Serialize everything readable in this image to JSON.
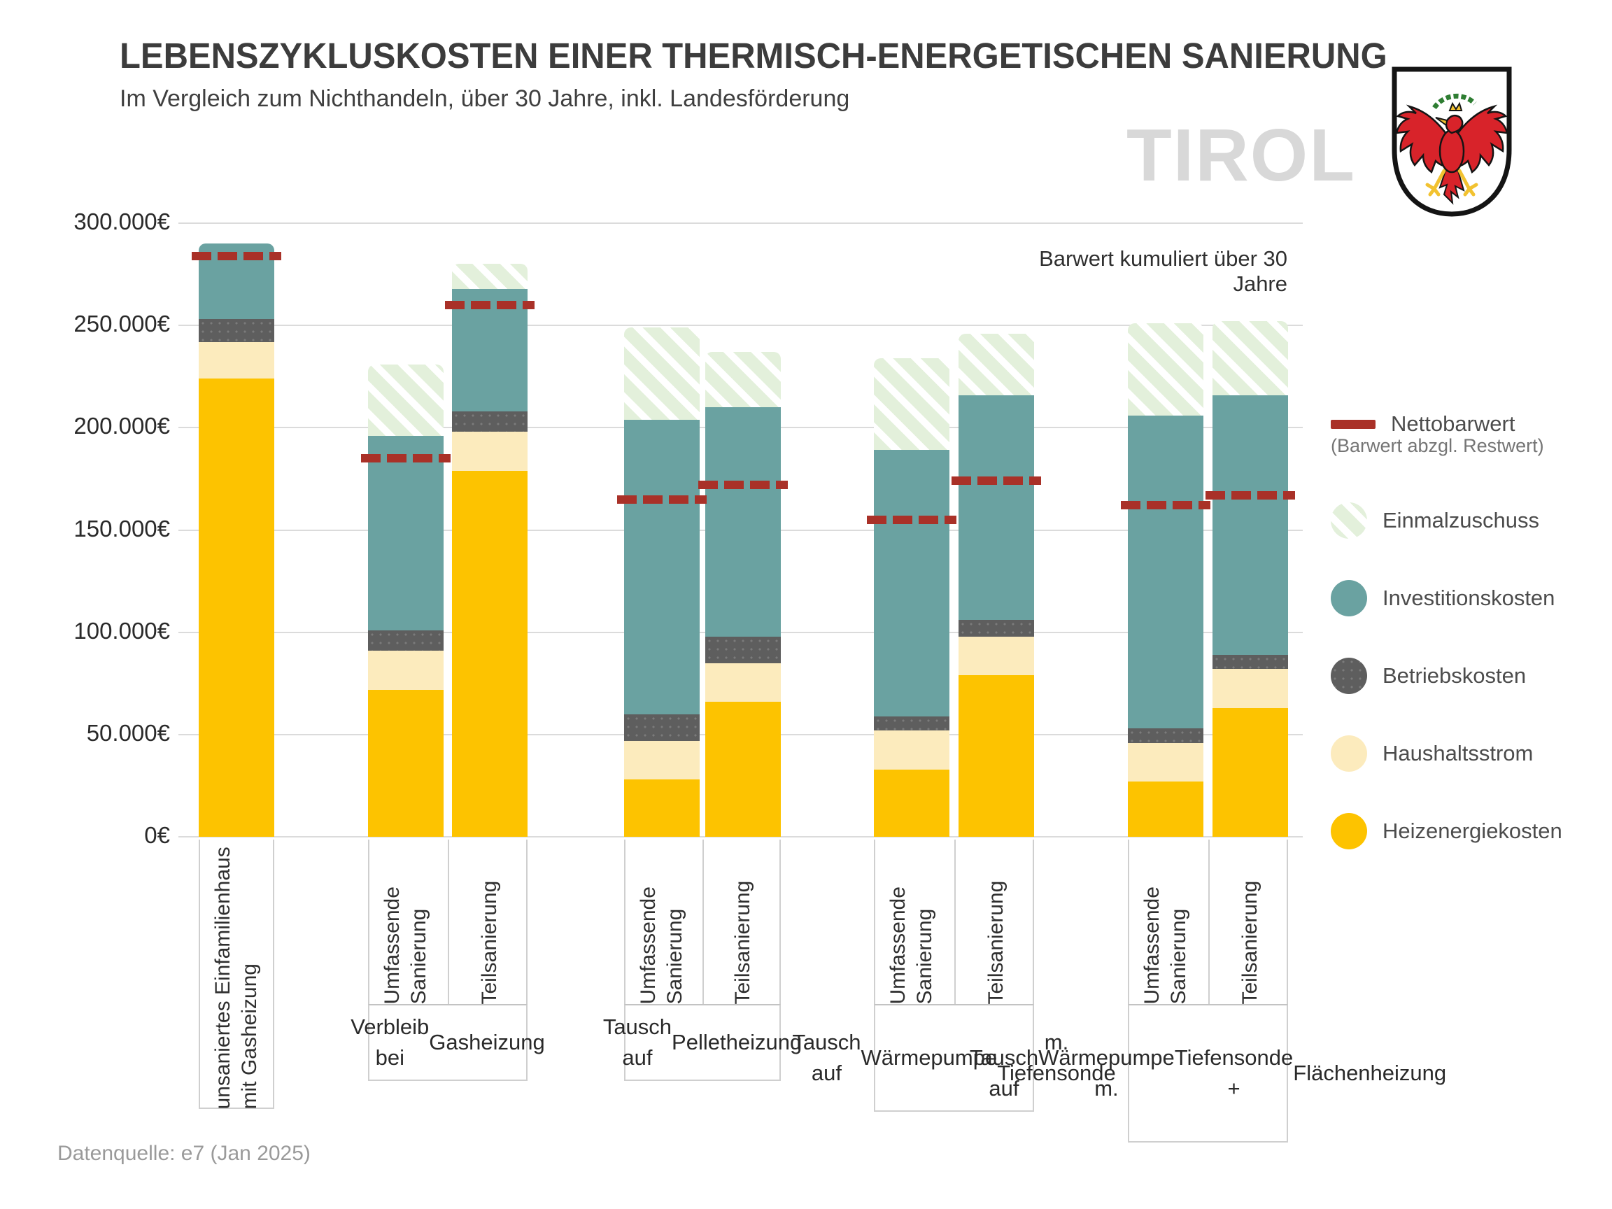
{
  "header": {
    "title": "LEBENSZYKLUSKOSTEN EINER THERMISCH-ENERGETISCHEN SANIERUNG",
    "subtitle": "Im Vergleich zum Nichthandeln, über 30 Jahre, inkl. Landesförderung",
    "watermark": "TIROL",
    "logo": "tirol-coat-of-arms"
  },
  "annotation": "Barwert kumuliert über 30 Jahre",
  "footer": {
    "source": "Datenquelle: e7 (Jan 2025)"
  },
  "colors": {
    "heizenergiekosten": "#FDC300",
    "haushaltsstrom": "#FCEBBD",
    "betriebskosten": "#5E5E5E",
    "investitionskosten": "#6AA2A1",
    "einmalzuschuss_base": "#E3F0DB",
    "einmalzuschuss_stripe": "#FFFFFF",
    "nettobarwert": "#A93128",
    "gridline": "#DBDBDB",
    "title_text": "#3C3C3C",
    "watermark_text": "#D8D8D8"
  },
  "legend": {
    "position": "right",
    "items": [
      {
        "key": "nettobarwert",
        "label": "Nettobarwert",
        "sublabel": "(Barwert abzgl. Restwert)",
        "swatch": "dash"
      },
      {
        "key": "einmalzuschuss",
        "label": "Einmalzuschuss",
        "swatch": "hatched-circle"
      },
      {
        "key": "investitionskosten",
        "label": "Investitionskosten",
        "swatch": "circle"
      },
      {
        "key": "betriebskosten",
        "label": "Betriebskosten",
        "swatch": "circle"
      },
      {
        "key": "haushaltsstrom",
        "label": "Haushaltsstrom",
        "swatch": "circle"
      },
      {
        "key": "heizenergiekosten",
        "label": "Heizenergiekosten",
        "swatch": "circle"
      }
    ]
  },
  "chart_data": {
    "type": "bar",
    "subtype": "stacked",
    "unit": "EUR",
    "title": "Lebenszykluskosten einer thermisch-energetischen Sanierung",
    "ylabel": "Barwert kumuliert über 30 Jahre",
    "ylim": [
      0,
      300000
    ],
    "y_ticks": [
      "0€",
      "50.000€",
      "100.000€",
      "150.000€",
      "200.000€",
      "250.000€",
      "300.000€"
    ],
    "grid": true,
    "stack_order": [
      "heizenergiekosten",
      "haushaltsstrom",
      "betriebskosten",
      "investitionskosten",
      "einmalzuschuss"
    ],
    "series_labels": {
      "heizenergiekosten": "Heizenergiekosten",
      "haushaltsstrom": "Haushaltsstrom",
      "betriebskosten": "Betriebskosten",
      "investitionskosten": "Investitionskosten",
      "einmalzuschuss": "Einmalzuschuss",
      "nettobarwert": "Nettobarwert"
    },
    "bars": [
      {
        "label_lines": [
          "unsaniertes Einfamilienhaus",
          "mit Gasheizung"
        ],
        "values": {
          "heizenergiekosten": 224000,
          "haushaltsstrom": 18000,
          "betriebskosten": 11000,
          "investitionskosten": 37000,
          "einmalzuschuss": 0
        },
        "nettobarwert": 284000
      },
      {
        "label_lines": [
          "Umfassende",
          "Sanierung"
        ],
        "values": {
          "heizenergiekosten": 72000,
          "haushaltsstrom": 19000,
          "betriebskosten": 10000,
          "investitionskosten": 95000,
          "einmalzuschuss": 35000
        },
        "nettobarwert": 185000
      },
      {
        "label_lines": [
          "Teilsanierung"
        ],
        "values": {
          "heizenergiekosten": 179000,
          "haushaltsstrom": 19000,
          "betriebskosten": 10000,
          "investitionskosten": 60000,
          "einmalzuschuss": 12000
        },
        "nettobarwert": 260000
      },
      {
        "label_lines": [
          "Umfassende",
          "Sanierung"
        ],
        "values": {
          "heizenergiekosten": 28000,
          "haushaltsstrom": 19000,
          "betriebskosten": 13000,
          "investitionskosten": 144000,
          "einmalzuschuss": 45000
        },
        "nettobarwert": 165000
      },
      {
        "label_lines": [
          "Teilsanierung"
        ],
        "values": {
          "heizenergiekosten": 66000,
          "haushaltsstrom": 19000,
          "betriebskosten": 13000,
          "investitionskosten": 112000,
          "einmalzuschuss": 27000
        },
        "nettobarwert": 172000
      },
      {
        "label_lines": [
          "Umfassende",
          "Sanierung"
        ],
        "values": {
          "heizenergiekosten": 33000,
          "haushaltsstrom": 19000,
          "betriebskosten": 7000,
          "investitionskosten": 130000,
          "einmalzuschuss": 45000
        },
        "nettobarwert": 155000
      },
      {
        "label_lines": [
          "Teilsanierung"
        ],
        "values": {
          "heizenergiekosten": 79000,
          "haushaltsstrom": 19000,
          "betriebskosten": 8000,
          "investitionskosten": 110000,
          "einmalzuschuss": 30000
        },
        "nettobarwert": 174000
      },
      {
        "label_lines": [
          "Umfassende",
          "Sanierung"
        ],
        "values": {
          "heizenergiekosten": 27000,
          "haushaltsstrom": 19000,
          "betriebskosten": 7000,
          "investitionskosten": 153000,
          "einmalzuschuss": 45000
        },
        "nettobarwert": 162000
      },
      {
        "label_lines": [
          "Teilsanierung"
        ],
        "values": {
          "heizenergiekosten": 63000,
          "haushaltsstrom": 19000,
          "betriebskosten": 7000,
          "investitionskosten": 127000,
          "einmalzuschuss": 36000
        },
        "nettobarwert": 167000
      }
    ],
    "groups": [
      {
        "label_lines": [],
        "bars": [
          0
        ]
      },
      {
        "label_lines": [
          "Verbleib bei",
          "Gasheizung"
        ],
        "bars": [
          1,
          2
        ]
      },
      {
        "label_lines": [
          "Tausch auf",
          "Pelletheizung"
        ],
        "bars": [
          3,
          4
        ]
      },
      {
        "label_lines": [
          "Tausch auf",
          "Wärmepumpe",
          "m. Tiefensonde"
        ],
        "bars": [
          5,
          6
        ]
      },
      {
        "label_lines": [
          "Tausch auf",
          "Wärmepumpe m.",
          "Tiefensonde +",
          "Flächenheizung"
        ],
        "bars": [
          7,
          8
        ]
      }
    ]
  }
}
